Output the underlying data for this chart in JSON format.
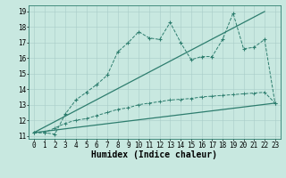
{
  "line1_x": [
    0,
    1,
    2,
    3,
    4,
    5,
    6,
    7,
    8,
    9,
    10,
    11,
    12,
    13,
    14,
    15,
    16,
    17,
    18,
    19,
    20,
    21,
    22,
    23
  ],
  "line1_y": [
    11.2,
    11.2,
    11.1,
    12.4,
    13.3,
    13.8,
    14.3,
    14.9,
    16.4,
    17.0,
    17.7,
    17.3,
    17.2,
    18.3,
    17.0,
    15.9,
    16.1,
    16.1,
    17.2,
    18.9,
    16.6,
    16.7,
    17.2,
    13.1
  ],
  "line2_x": [
    0,
    22
  ],
  "line2_y": [
    11.2,
    19.0
  ],
  "line3_x": [
    0,
    23
  ],
  "line3_y": [
    11.2,
    13.1
  ],
  "line4_x": [
    0,
    1,
    2,
    3,
    4,
    5,
    6,
    7,
    8,
    9,
    10,
    11,
    12,
    13,
    14,
    15,
    16,
    17,
    18,
    19,
    20,
    21,
    22,
    23
  ],
  "line4_y": [
    11.2,
    11.2,
    11.5,
    11.8,
    12.0,
    12.1,
    12.3,
    12.5,
    12.7,
    12.8,
    13.0,
    13.1,
    13.2,
    13.3,
    13.35,
    13.4,
    13.5,
    13.55,
    13.6,
    13.65,
    13.7,
    13.75,
    13.8,
    13.1
  ],
  "color": "#2d7d6e",
  "bg_color": "#c8e8e0",
  "grid_color": "#a8ccc8",
  "grid_minor_color": "#b8d8d4",
  "xlabel": "Humidex (Indice chaleur)",
  "xlim": [
    -0.5,
    23.5
  ],
  "ylim": [
    10.8,
    19.4
  ],
  "xticks": [
    0,
    1,
    2,
    3,
    4,
    5,
    6,
    7,
    8,
    9,
    10,
    11,
    12,
    13,
    14,
    15,
    16,
    17,
    18,
    19,
    20,
    21,
    22,
    23
  ],
  "yticks": [
    11,
    12,
    13,
    14,
    15,
    16,
    17,
    18,
    19
  ],
  "font_size": 5.5,
  "label_font_size": 7
}
